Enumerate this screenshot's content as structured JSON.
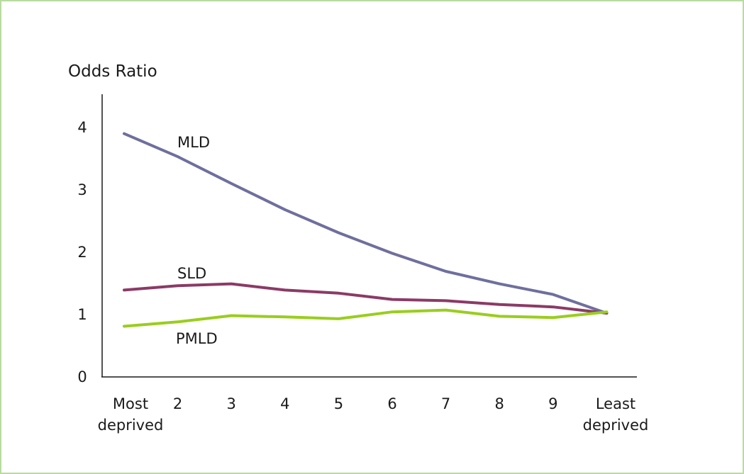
{
  "colors": {
    "frame": "#b7dca0",
    "MLD": "#6f6f9e",
    "SLD": "#8b3a66",
    "PMLD": "#9acd1e",
    "axis": "#1a1a1a"
  },
  "chart_data": {
    "type": "line",
    "ylabel": "Odds Ratio",
    "xlabel": "",
    "ylim": [
      0,
      4.5
    ],
    "yticks": [
      "0",
      "1",
      "2",
      "3",
      "4"
    ],
    "categories": [
      [
        "Most",
        "deprived"
      ],
      [
        "2"
      ],
      [
        "3"
      ],
      [
        "4"
      ],
      [
        "5"
      ],
      [
        "6"
      ],
      [
        "7"
      ],
      [
        "8"
      ],
      [
        "9"
      ],
      [
        "Least",
        "deprived"
      ]
    ],
    "series": [
      {
        "name": "MLD",
        "values": [
          3.88,
          3.51,
          3.08,
          2.66,
          2.29,
          1.96,
          1.67,
          1.47,
          1.3,
          1.0
        ]
      },
      {
        "name": "SLD",
        "values": [
          1.37,
          1.44,
          1.47,
          1.37,
          1.32,
          1.22,
          1.2,
          1.14,
          1.1,
          1.0
        ]
      },
      {
        "name": "PMLD",
        "values": [
          0.79,
          0.86,
          0.96,
          0.94,
          0.91,
          1.02,
          1.05,
          0.95,
          0.93,
          1.02
        ]
      }
    ],
    "grid": false,
    "legend": "inline labels"
  }
}
